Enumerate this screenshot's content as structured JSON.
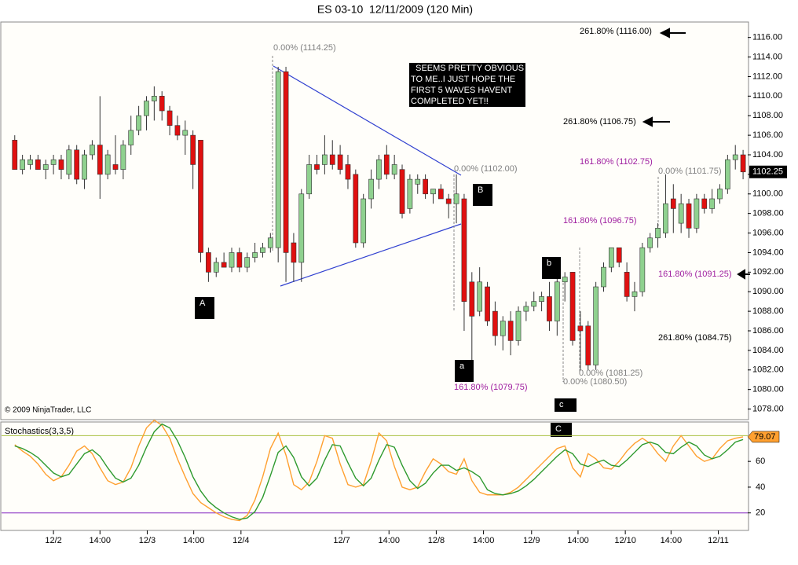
{
  "chart_data": [
    {
      "type": "candlestick",
      "title": "ES 03-10  12/11/2009 (120 Min)",
      "copyright": "© 2009 NinjaTrader, LLC",
      "up_color": "#8fd18f",
      "down_color": "#e01010",
      "ylim": [
        1077,
        1117.5
      ],
      "yticks": [
        {
          "value": 1078,
          "label": "1078.00"
        },
        {
          "value": 1080,
          "label": "1080.00"
        },
        {
          "value": 1082,
          "label": "1082.00"
        },
        {
          "value": 1084,
          "label": "1084.00"
        },
        {
          "value": 1086,
          "label": "1086.00"
        },
        {
          "value": 1088,
          "label": "1088.00"
        },
        {
          "value": 1090,
          "label": "1090.00"
        },
        {
          "value": 1092,
          "label": "1092.00"
        },
        {
          "value": 1094,
          "label": "1094.00"
        },
        {
          "value": 1096,
          "label": "1096.00"
        },
        {
          "value": 1098,
          "label": "1098.00"
        },
        {
          "value": 1100,
          "label": "1100.00"
        },
        {
          "value": 1102,
          "label": "1102.00"
        },
        {
          "value": 1104,
          "label": "1104.00"
        },
        {
          "value": 1106,
          "label": "1106.00"
        },
        {
          "value": 1108,
          "label": "1108.00"
        },
        {
          "value": 1110,
          "label": "1110.00"
        },
        {
          "value": 1112,
          "label": "1112.00"
        },
        {
          "value": 1114,
          "label": "1114.00"
        },
        {
          "value": 1116,
          "label": "1116.00"
        }
      ],
      "xlim": [
        -1.7,
        94.6
      ],
      "xticks": [
        {
          "value": 5,
          "label": "12/2"
        },
        {
          "value": 11,
          "label": "14:00"
        },
        {
          "value": 17.1,
          "label": "12/3"
        },
        {
          "value": 23.1,
          "label": "14:00"
        },
        {
          "value": 29.2,
          "label": "12/4"
        },
        {
          "value": 42.2,
          "label": "12/7"
        },
        {
          "value": 48.3,
          "label": "14:00"
        },
        {
          "value": 54.4,
          "label": "12/8"
        },
        {
          "value": 60.5,
          "label": "14:00"
        },
        {
          "value": 66.7,
          "label": "12/9"
        },
        {
          "value": 72.7,
          "label": "14:00"
        },
        {
          "value": 78.8,
          "label": "12/10"
        },
        {
          "value": 84.7,
          "label": "14:00"
        },
        {
          "value": 90.8,
          "label": "12/11"
        }
      ],
      "candles": [
        [
          1105.5,
          1106,
          1102.5,
          1102.5
        ],
        [
          1102.5,
          1104,
          1102,
          1103.5
        ],
        [
          1103,
          1104,
          1102.5,
          1103.5
        ],
        [
          1103.5,
          1104,
          1102.5,
          1102.5
        ],
        [
          1102.5,
          1103.5,
          1101.5,
          1103
        ],
        [
          1103,
          1104,
          1102,
          1103.5
        ],
        [
          1103.5,
          1104,
          1101.5,
          1102.5
        ],
        [
          1102,
          1105,
          1101.5,
          1104.5
        ],
        [
          1104.5,
          1105,
          1101,
          1101.5
        ],
        [
          1101.5,
          1104.5,
          1100.5,
          1104
        ],
        [
          1104,
          1105.5,
          1103.5,
          1105
        ],
        [
          1105,
          1110,
          1099.5,
          1102
        ],
        [
          1102,
          1104.5,
          1101.5,
          1104
        ],
        [
          1103,
          1106,
          1102,
          1102.5
        ],
        [
          1102.5,
          1105.5,
          1101.5,
          1105
        ],
        [
          1105,
          1108,
          1104,
          1106.5
        ],
        [
          1106.5,
          1109,
          1106,
          1108
        ],
        [
          1108,
          1110,
          1106.5,
          1109.5
        ],
        [
          1109.5,
          1111,
          1107.5,
          1110
        ],
        [
          1110,
          1110.5,
          1107.5,
          1108.5
        ],
        [
          1108.5,
          1109,
          1106,
          1107
        ],
        [
          1107,
          1108,
          1105.5,
          1106
        ],
        [
          1106,
          1107.5,
          1104,
          1106.5
        ],
        [
          1106,
          1106.5,
          1100.5,
          1103
        ],
        [
          1105.5,
          1105.5,
          1093,
          1094
        ],
        [
          1094,
          1094.5,
          1091,
          1092
        ],
        [
          1092,
          1093.5,
          1091.5,
          1093
        ],
        [
          1093,
          1094,
          1092.5,
          1092.5
        ],
        [
          1092.5,
          1094.5,
          1092,
          1094
        ],
        [
          1094,
          1094.5,
          1092,
          1092.5
        ],
        [
          1092.5,
          1094,
          1092,
          1093.5
        ],
        [
          1093.5,
          1095,
          1093,
          1094
        ],
        [
          1094,
          1095,
          1093.5,
          1094.5
        ],
        [
          1094.5,
          1096,
          1094,
          1095.5
        ],
        [
          1094.5,
          1113,
          1093,
          1112.5
        ],
        [
          1112.5,
          1113,
          1091,
          1094
        ],
        [
          1095,
          1096,
          1091,
          1093
        ],
        [
          1093,
          1100.5,
          1091,
          1100
        ],
        [
          1100,
          1104,
          1099.5,
          1103
        ],
        [
          1103,
          1104,
          1102,
          1102.5
        ],
        [
          1103,
          1106,
          1102,
          1104
        ],
        [
          1104,
          1105.5,
          1102.5,
          1103
        ],
        [
          1104,
          1105,
          1102,
          1102.5
        ],
        [
          1103,
          1104,
          1100.5,
          1101.5
        ],
        [
          1102,
          1102.5,
          1094.5,
          1095
        ],
        [
          1095,
          1100,
          1094.5,
          1099.5
        ],
        [
          1099.5,
          1102.5,
          1098.5,
          1101.5
        ],
        [
          1101.5,
          1104,
          1100.5,
          1103.5
        ],
        [
          1104,
          1105,
          1101.5,
          1102
        ],
        [
          1102,
          1104,
          1101.5,
          1103
        ],
        [
          1102.5,
          1103,
          1097.5,
          1098
        ],
        [
          1098.5,
          1102,
          1098,
          1101.5
        ],
        [
          1101,
          1102,
          1100,
          1101.5
        ],
        [
          1101.5,
          1102,
          1099.5,
          1100
        ],
        [
          1100,
          1100.5,
          1099,
          1100.5
        ],
        [
          1100.5,
          1101,
          1099.5,
          1099.5
        ],
        [
          1099.5,
          1100,
          1097.5,
          1099
        ],
        [
          1099,
          1102,
          1097,
          1100
        ],
        [
          1099.5,
          1100,
          1086,
          1089
        ],
        [
          1091,
          1092,
          1082.5,
          1087.5
        ],
        [
          1088,
          1092.5,
          1087.5,
          1091
        ],
        [
          1090.5,
          1091,
          1086.5,
          1087
        ],
        [
          1088,
          1089,
          1084.5,
          1085.5
        ],
        [
          1085.5,
          1087.5,
          1084,
          1087
        ],
        [
          1087,
          1088,
          1083.5,
          1085
        ],
        [
          1085,
          1088.5,
          1084.5,
          1088
        ],
        [
          1088,
          1089,
          1087,
          1088.5
        ],
        [
          1088.5,
          1090,
          1088,
          1089
        ],
        [
          1089,
          1090,
          1088,
          1089.5
        ],
        [
          1089.5,
          1091,
          1086,
          1087
        ],
        [
          1087,
          1091.5,
          1085.5,
          1091
        ],
        [
          1091,
          1092,
          1089,
          1091.5
        ],
        [
          1092,
          1092,
          1084.5,
          1085
        ],
        [
          1086.5,
          1088,
          1082,
          1086
        ],
        [
          1086.5,
          1087,
          1082,
          1082.5
        ],
        [
          1082.5,
          1091,
          1082,
          1090.5
        ],
        [
          1090.5,
          1093,
          1090,
          1092.5
        ],
        [
          1092.5,
          1094.5,
          1092,
          1094.5
        ],
        [
          1094.5,
          1094.5,
          1092.5,
          1093
        ],
        [
          1092,
          1093,
          1089,
          1089.5
        ],
        [
          1089.5,
          1091,
          1088,
          1090
        ],
        [
          1090,
          1095,
          1089.5,
          1094.5
        ],
        [
          1094.5,
          1096,
          1094,
          1095.5
        ],
        [
          1095.5,
          1097,
          1094.5,
          1096.5
        ],
        [
          1096,
          1102,
          1095.5,
          1099
        ],
        [
          1099.5,
          1101,
          1096,
          1098.5
        ],
        [
          1097,
          1100,
          1096,
          1099
        ],
        [
          1099,
          1099.5,
          1095.5,
          1096.5
        ],
        [
          1096.5,
          1100,
          1096,
          1099.5
        ],
        [
          1099.5,
          1100,
          1098,
          1098.5
        ],
        [
          1098.5,
          1100.5,
          1098,
          1099.5
        ],
        [
          1099.5,
          1101,
          1099,
          1100.5
        ],
        [
          1100.5,
          1104,
          1100,
          1103.5
        ],
        [
          1103.5,
          1105,
          1102.5,
          1104
        ],
        [
          1104,
          1104.5,
          1101.5,
          1102.25
        ]
      ],
      "annotations": [
        {
          "text": "0.00% (1114.25)",
          "color": "#808080"
        },
        {
          "text": "261.80% (1116.00)",
          "color": "#000000"
        },
        {
          "text": "261.80% (1106.75)",
          "color": "#000000"
        },
        {
          "text": "161.80% (1102.75)",
          "color": "#a020a0"
        },
        {
          "text": "0.00% (1102.00)",
          "color": "#808080"
        },
        {
          "text": "0.00% (1101.75)",
          "color": "#808080"
        },
        {
          "text": "161.80% (1096.75)",
          "color": "#a020a0"
        },
        {
          "text": "161.80% (1091.25)",
          "color": "#a020a0"
        },
        {
          "text": "261.80% (1084.75)",
          "color": "#000000"
        },
        {
          "text": "0.00% (1081.25)",
          "color": "#808080"
        },
        {
          "text": "0.00% (1080.50)",
          "color": "#808080"
        },
        {
          "text": "161.80% (1079.75)",
          "color": "#a020a0"
        }
      ],
      "wave_labels": [
        "A",
        "B",
        "a",
        "b",
        "c",
        "C"
      ],
      "note": [
        "  SEEMS PRETTY OBVIOUS",
        "TO ME..I JUST HOPE THE",
        "FIRST 5 WAVES HAVENT",
        "COMPLETED YET!!"
      ]
    },
    {
      "type": "line",
      "title": "Stochastics(3,3,5)",
      "ylim": [
        7,
        90
      ],
      "yticks": [
        20,
        40,
        60
      ],
      "levels": [
        {
          "value": 80,
          "color": "#a8c040"
        },
        {
          "value": 20,
          "color": "#8020c0"
        }
      ],
      "series": [
        {
          "color": "#ffa030",
          "values": [
            73,
            68,
            64,
            58,
            50,
            45,
            48,
            57,
            68,
            72,
            66,
            55,
            45,
            42,
            44,
            55,
            72,
            86,
            92,
            88,
            78,
            62,
            48,
            35,
            28,
            24,
            20,
            17,
            15,
            14,
            18,
            30,
            48,
            70,
            82,
            65,
            42,
            38,
            44,
            60,
            80,
            78,
            58,
            42,
            40,
            42,
            60,
            82,
            76,
            56,
            40,
            38,
            40,
            52,
            62,
            58,
            52,
            50,
            62,
            45,
            36,
            34,
            34,
            34,
            36,
            40,
            46,
            52,
            58,
            64,
            70,
            72,
            55,
            48,
            66,
            62,
            55,
            54,
            60,
            68,
            74,
            78,
            74,
            66,
            60,
            72,
            80,
            72,
            64,
            60,
            62,
            70,
            76,
            78,
            79.07
          ]
        },
        {
          "color": "#2e9a2e",
          "values": [
            72,
            70,
            67,
            63,
            57,
            51,
            48,
            50,
            58,
            66,
            69,
            64,
            55,
            47,
            44,
            47,
            57,
            71,
            83,
            89,
            86,
            76,
            63,
            48,
            37,
            29,
            24,
            20,
            17,
            15,
            16,
            21,
            32,
            49,
            67,
            72,
            63,
            48,
            41,
            47,
            61,
            73,
            72,
            59,
            47,
            41,
            47,
            61,
            73,
            71,
            57,
            45,
            39,
            43,
            51,
            57,
            57,
            53,
            55,
            52,
            48,
            38,
            35,
            34,
            35,
            37,
            41,
            46,
            52,
            58,
            64,
            69,
            66,
            58,
            56,
            59,
            61,
            57,
            56,
            61,
            67,
            73,
            75,
            73,
            67,
            66,
            71,
            75,
            72,
            65,
            62,
            64,
            69,
            75,
            77
          ]
        }
      ]
    }
  ]
}
